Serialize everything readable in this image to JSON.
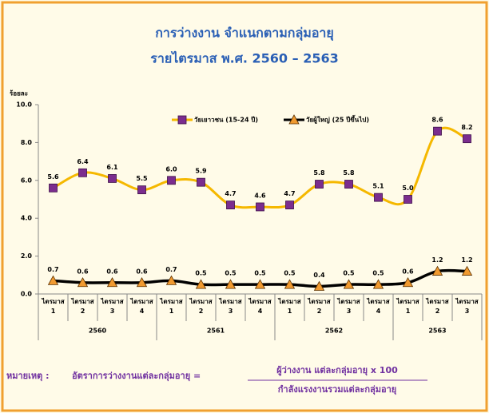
{
  "chart_data": {
    "type": "line",
    "title": "การว่างงาน  จำแนกตามกลุ่มอายุ",
    "subtitle": "รายไตรมาส พ.ศ. 2560 – 2563",
    "y_label": "ร้อยละ",
    "categories": [
      "ไตรมาส 1",
      "ไตรมาส 2",
      "ไตรมาส 3",
      "ไตรมาส 4",
      "ไตรมาส 1",
      "ไตรมาส 2",
      "ไตรมาส 3",
      "ไตรมาส 4",
      "ไตรมาส 1",
      "ไตรมาส 2",
      "ไตรมาส 3",
      "ไตรมาส 4",
      "ไตรมาส 1",
      "ไตรมาส 2",
      "ไตรมาส 3"
    ],
    "x_groups": [
      "2560",
      "2561",
      "2562",
      "2563"
    ],
    "series": [
      {
        "name": "วัยเยาวชน (15-24 ปี)",
        "color": "#f5b800",
        "marker": "square",
        "marker_color": "#7b2d8e",
        "values": [
          5.6,
          6.4,
          6.1,
          5.5,
          6.0,
          5.9,
          4.7,
          4.6,
          4.7,
          5.8,
          5.8,
          5.1,
          5.0,
          8.6,
          8.2
        ],
        "value_labels": [
          "5.6",
          "6.4",
          "6.1",
          "5.5",
          "6.0",
          "5.9",
          "4.7",
          "4.6",
          "4.7",
          "5.8",
          "5.8",
          "5.1",
          "5.0",
          "8.6",
          "8.2"
        ]
      },
      {
        "name": "วัยผู้ใหญ่ (25 ปีขึ้นไป)",
        "color": "#000000",
        "marker": "triangle",
        "marker_color": "#f09a30",
        "values": [
          0.7,
          0.6,
          0.6,
          0.6,
          0.7,
          0.5,
          0.5,
          0.5,
          0.5,
          0.4,
          0.5,
          0.5,
          0.6,
          1.2,
          1.2
        ],
        "value_labels": [
          "0.7",
          "0.6",
          "0.6",
          "0.6",
          "0.7",
          "0.5",
          "0.5",
          "0.5",
          "0.5",
          "0.4",
          "0.5",
          "0.5",
          "0.6",
          "1.2",
          "1.2"
        ]
      }
    ],
    "ylim": [
      0,
      10
    ],
    "yticks": [
      {
        "value": 0,
        "label": "0.0"
      },
      {
        "value": 2,
        "label": "2.0"
      },
      {
        "value": 4,
        "label": "4.0"
      },
      {
        "value": 6,
        "label": "6.0"
      },
      {
        "value": 8,
        "label": "8.0"
      },
      {
        "value": 10,
        "label": "10.0"
      }
    ],
    "grid": false,
    "note": {
      "label": "หมายเหตุ :",
      "text": "อัตราการว่างงานแต่ละกลุ่มอายุ  =",
      "numerator": "ผู้ว่างงาน แต่ละกลุ่มอายุ x 100",
      "denominator": "กำลังแรงงานรวมแต่ละกลุ่มอายุ"
    }
  }
}
